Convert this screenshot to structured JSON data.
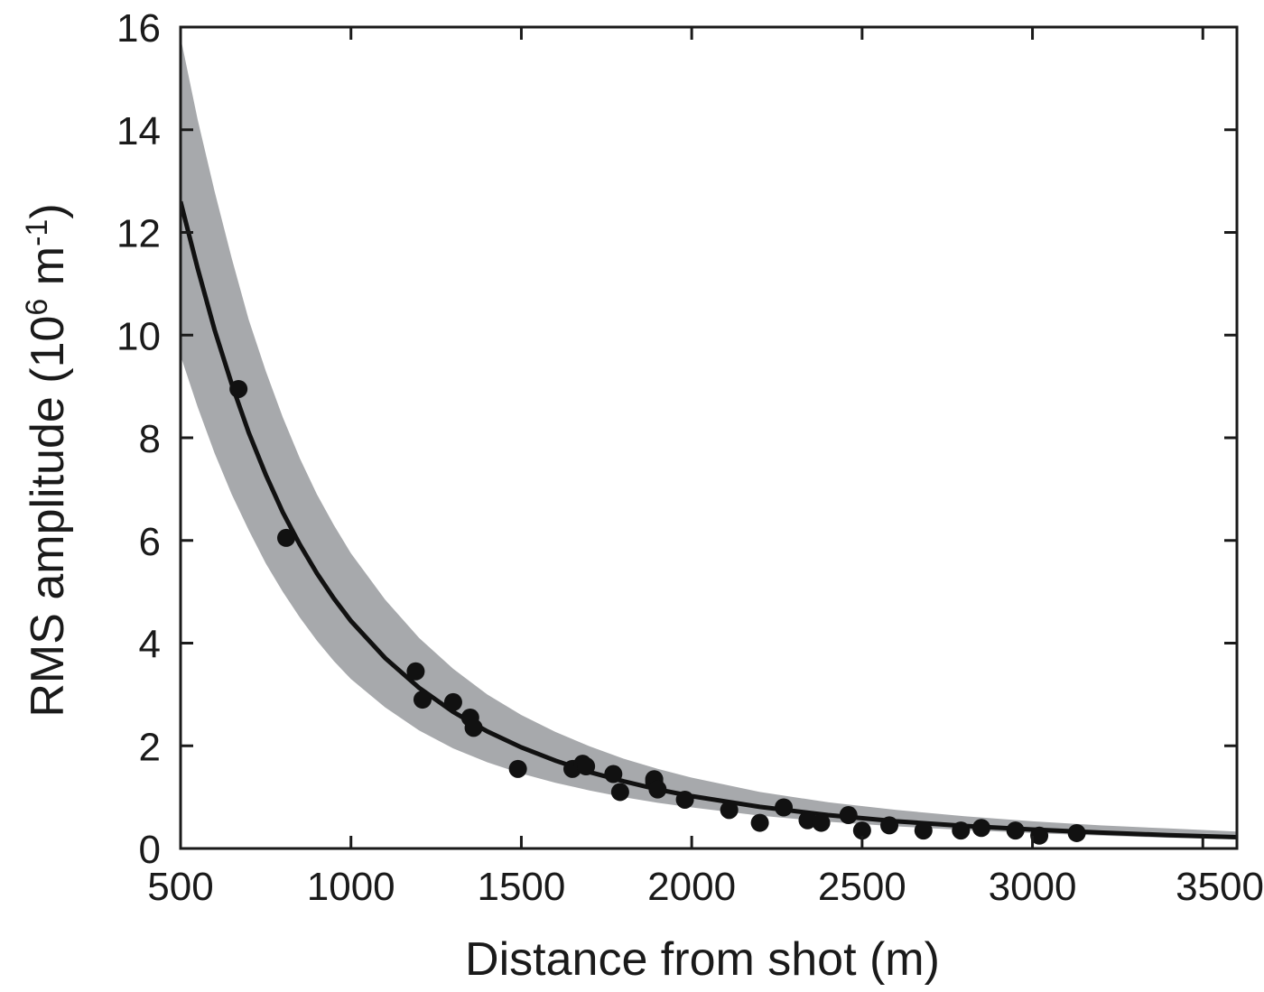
{
  "chart_data": {
    "type": "scatter",
    "title": "",
    "xlabel": "Distance from shot (m)",
    "ylabel": {
      "main": "RMS amplitude (10",
      "sup1": "6",
      "mid": " m",
      "sup2": "-1",
      "end": ")"
    },
    "xlim": [
      500,
      3600
    ],
    "ylim": [
      0,
      16
    ],
    "xticks": [
      500,
      1000,
      1500,
      2000,
      2500,
      3000,
      3500
    ],
    "yticks": [
      0,
      2,
      4,
      6,
      8,
      10,
      12,
      14,
      16
    ],
    "grid": false,
    "legend": "none",
    "colors": {
      "band": "#a7a9ac",
      "line": "#111111",
      "points": "#111111",
      "axes": "#1a1a1a"
    },
    "fit_curve": {
      "x": [
        500,
        550,
        600,
        650,
        700,
        750,
        800,
        850,
        900,
        950,
        1000,
        1100,
        1200,
        1300,
        1400,
        1500,
        1600,
        1700,
        1800,
        1900,
        2000,
        2200,
        2400,
        2600,
        2800,
        3000,
        3200,
        3400,
        3600
      ],
      "y": [
        12.6,
        11.3,
        10.1,
        9.05,
        8.1,
        7.28,
        6.55,
        5.92,
        5.36,
        4.87,
        4.43,
        3.71,
        3.13,
        2.66,
        2.28,
        1.97,
        1.71,
        1.49,
        1.31,
        1.15,
        1.02,
        0.81,
        0.65,
        0.53,
        0.44,
        0.37,
        0.31,
        0.26,
        0.22
      ]
    },
    "confidence_band": {
      "x": [
        500,
        550,
        600,
        650,
        700,
        750,
        800,
        850,
        900,
        950,
        1000,
        1100,
        1200,
        1300,
        1400,
        1500,
        1600,
        1700,
        1800,
        1900,
        2000,
        2200,
        2400,
        2600,
        2800,
        3000,
        3200,
        3400,
        3600
      ],
      "upper": [
        15.8,
        14.2,
        12.8,
        11.5,
        10.3,
        9.3,
        8.4,
        7.6,
        6.9,
        6.3,
        5.75,
        4.85,
        4.1,
        3.5,
        3.0,
        2.6,
        2.27,
        1.99,
        1.75,
        1.55,
        1.38,
        1.1,
        0.9,
        0.75,
        0.63,
        0.53,
        0.45,
        0.39,
        0.33
      ],
      "lower": [
        9.6,
        8.6,
        7.7,
        6.9,
        6.2,
        5.55,
        5.0,
        4.5,
        4.05,
        3.65,
        3.3,
        2.75,
        2.3,
        1.95,
        1.68,
        1.46,
        1.28,
        1.13,
        1.0,
        0.89,
        0.8,
        0.64,
        0.52,
        0.43,
        0.36,
        0.3,
        0.25,
        0.21,
        0.18
      ]
    },
    "points": {
      "x": [
        670,
        810,
        1190,
        1210,
        1300,
        1350,
        1360,
        1490,
        1650,
        1680,
        1690,
        1770,
        1790,
        1890,
        1890,
        1900,
        1980,
        2110,
        2200,
        2270,
        2340,
        2380,
        2460,
        2500,
        2580,
        2680,
        2790,
        2850,
        2950,
        3020,
        3130
      ],
      "y": [
        8.95,
        6.05,
        3.45,
        2.9,
        2.85,
        2.55,
        2.35,
        1.55,
        1.55,
        1.65,
        1.6,
        1.45,
        1.1,
        1.3,
        1.35,
        1.15,
        0.95,
        0.75,
        0.5,
        0.8,
        0.55,
        0.5,
        0.65,
        0.35,
        0.45,
        0.35,
        0.35,
        0.4,
        0.35,
        0.25,
        0.3
      ]
    }
  }
}
